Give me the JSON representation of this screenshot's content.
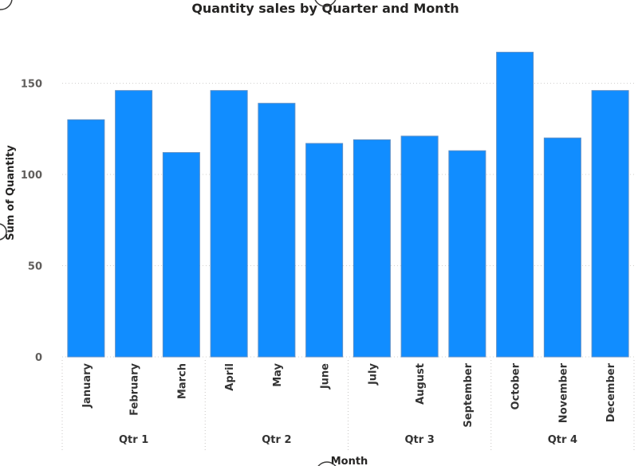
{
  "chart_data": {
    "type": "bar",
    "title": "Quantity sales by Quarter and Month",
    "xlabel": "Month",
    "ylabel": "Sum of Quantity",
    "ylim": [
      0,
      180
    ],
    "y_ticks": [
      0,
      50,
      100,
      150
    ],
    "grid": true,
    "bar_color": "#118dff",
    "categories": [
      "January",
      "February",
      "March",
      "April",
      "May",
      "June",
      "July",
      "August",
      "September",
      "October",
      "November",
      "December"
    ],
    "values": [
      130,
      146,
      112,
      146,
      139,
      117,
      119,
      121,
      113,
      167,
      120,
      146
    ],
    "groups": [
      {
        "name": "Qtr 1",
        "count": 3
      },
      {
        "name": "Qtr 2",
        "count": 3
      },
      {
        "name": "Qtr 3",
        "count": 3
      },
      {
        "name": "Qtr 4",
        "count": 3
      }
    ]
  }
}
